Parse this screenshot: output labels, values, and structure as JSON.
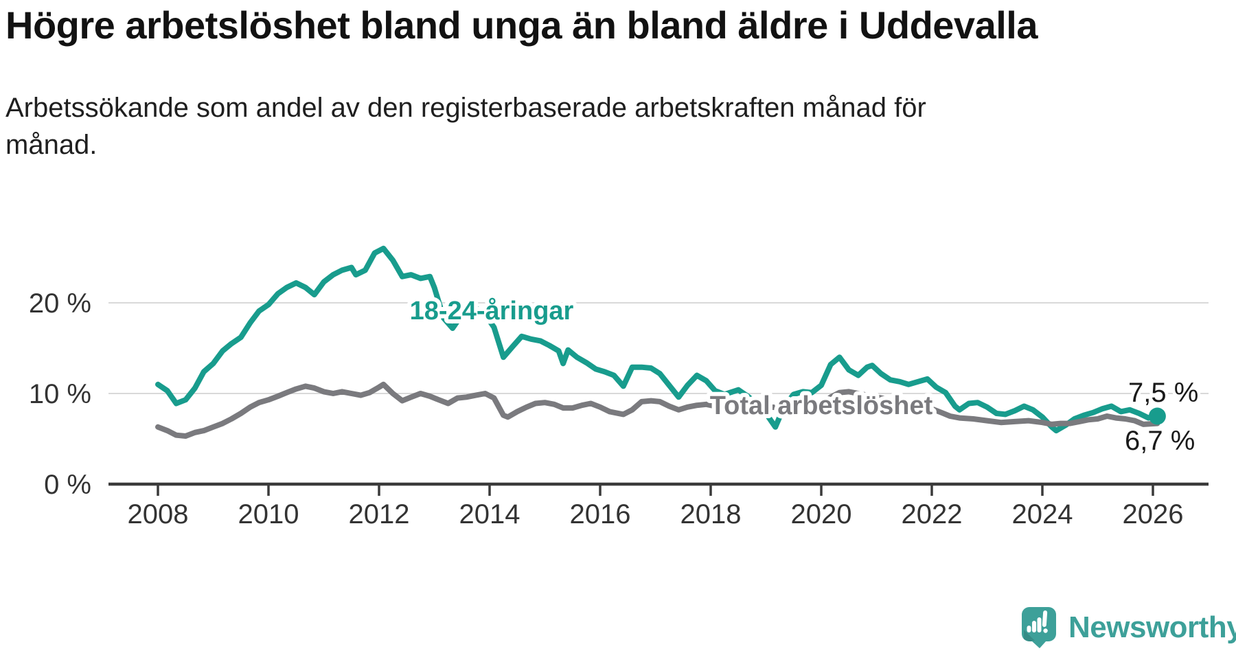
{
  "header": {
    "title": "Högre arbetslöshet bland unga än bland äldre i Uddevalla",
    "subtitle": "Arbetssökande som andel av den registerbaserade arbetskraften månad för månad."
  },
  "chart_data": {
    "type": "line",
    "title": "Högre arbetslöshet bland unga än bland äldre i Uddevalla",
    "subtitle": "Arbetssökande som andel av den registerbaserade arbetskraften månad för månad.",
    "unit": "%",
    "grid": "horizontal",
    "legend_position": "inline-labels",
    "x_axis": {
      "range": [
        2007.1,
        2027.0
      ],
      "ticks": [
        {
          "year": 2008,
          "label": "2008"
        },
        {
          "year": 2010,
          "label": "2010"
        },
        {
          "year": 2012,
          "label": "2012"
        },
        {
          "year": 2014,
          "label": "2014"
        },
        {
          "year": 2016,
          "label": "2016"
        },
        {
          "year": 2018,
          "label": "2018"
        },
        {
          "year": 2020,
          "label": "2020"
        },
        {
          "year": 2022,
          "label": "2022"
        },
        {
          "year": 2024,
          "label": "2024"
        },
        {
          "year": 2026,
          "label": "2026"
        }
      ]
    },
    "y_axis": {
      "range": [
        0,
        27
      ],
      "ticks": [
        {
          "value": 0,
          "label": "0 %"
        },
        {
          "value": 10,
          "label": "10 %"
        },
        {
          "value": 20,
          "label": "20 %"
        }
      ]
    },
    "style": {
      "grid_color": "#d9d9d9",
      "axis_color": "#3a3a3a",
      "axis_text_color": "#333333"
    },
    "series": [
      {
        "id": "young",
        "label": "18-24-åringar",
        "color": "#189c8d",
        "latest_value_label": "7,5 %",
        "points": [
          [
            2008.0,
            11.0
          ],
          [
            2008.17,
            10.3
          ],
          [
            2008.33,
            8.9
          ],
          [
            2008.5,
            9.3
          ],
          [
            2008.67,
            10.6
          ],
          [
            2008.83,
            12.4
          ],
          [
            2009.0,
            13.3
          ],
          [
            2009.17,
            14.7
          ],
          [
            2009.33,
            15.5
          ],
          [
            2009.5,
            16.2
          ],
          [
            2009.67,
            17.8
          ],
          [
            2009.83,
            19.1
          ],
          [
            2010.0,
            19.8
          ],
          [
            2010.17,
            21.0
          ],
          [
            2010.33,
            21.7
          ],
          [
            2010.5,
            22.2
          ],
          [
            2010.67,
            21.7
          ],
          [
            2010.83,
            20.9
          ],
          [
            2011.0,
            22.3
          ],
          [
            2011.17,
            23.1
          ],
          [
            2011.33,
            23.6
          ],
          [
            2011.5,
            23.9
          ],
          [
            2011.58,
            23.1
          ],
          [
            2011.75,
            23.6
          ],
          [
            2011.92,
            25.5
          ],
          [
            2012.08,
            26.0
          ],
          [
            2012.25,
            24.7
          ],
          [
            2012.42,
            22.9
          ],
          [
            2012.58,
            23.1
          ],
          [
            2012.75,
            22.7
          ],
          [
            2012.92,
            22.9
          ],
          [
            2013.0,
            21.7
          ],
          [
            2013.17,
            18.3
          ],
          [
            2013.33,
            17.2
          ],
          [
            2013.5,
            18.7
          ],
          [
            2013.67,
            19.5
          ],
          [
            2013.83,
            19.2
          ],
          [
            2014.0,
            18.0
          ],
          [
            2014.08,
            17.3
          ],
          [
            2014.25,
            14.0
          ],
          [
            2014.42,
            15.2
          ],
          [
            2014.58,
            16.3
          ],
          [
            2014.75,
            16.0
          ],
          [
            2014.92,
            15.8
          ],
          [
            2015.08,
            15.3
          ],
          [
            2015.25,
            14.7
          ],
          [
            2015.33,
            13.3
          ],
          [
            2015.42,
            14.8
          ],
          [
            2015.58,
            14.0
          ],
          [
            2015.75,
            13.4
          ],
          [
            2015.92,
            12.7
          ],
          [
            2016.08,
            12.4
          ],
          [
            2016.25,
            12.0
          ],
          [
            2016.42,
            10.8
          ],
          [
            2016.58,
            12.9
          ],
          [
            2016.75,
            12.9
          ],
          [
            2016.92,
            12.8
          ],
          [
            2017.08,
            12.2
          ],
          [
            2017.25,
            10.9
          ],
          [
            2017.42,
            9.6
          ],
          [
            2017.58,
            10.9
          ],
          [
            2017.75,
            12.0
          ],
          [
            2017.92,
            11.4
          ],
          [
            2018.08,
            10.3
          ],
          [
            2018.25,
            9.9
          ],
          [
            2018.5,
            10.4
          ],
          [
            2018.67,
            9.7
          ],
          [
            2018.83,
            8.9
          ],
          [
            2019.0,
            7.8
          ],
          [
            2019.17,
            6.3
          ],
          [
            2019.33,
            8.6
          ],
          [
            2019.5,
            9.9
          ],
          [
            2019.67,
            10.2
          ],
          [
            2019.83,
            10.1
          ],
          [
            2020.0,
            10.9
          ],
          [
            2020.17,
            13.2
          ],
          [
            2020.33,
            14.0
          ],
          [
            2020.5,
            12.6
          ],
          [
            2020.67,
            12.0
          ],
          [
            2020.83,
            12.9
          ],
          [
            2020.92,
            13.1
          ],
          [
            2021.08,
            12.2
          ],
          [
            2021.25,
            11.5
          ],
          [
            2021.42,
            11.3
          ],
          [
            2021.58,
            11.0
          ],
          [
            2021.75,
            11.3
          ],
          [
            2021.92,
            11.6
          ],
          [
            2022.08,
            10.7
          ],
          [
            2022.25,
            10.1
          ],
          [
            2022.42,
            8.6
          ],
          [
            2022.5,
            8.2
          ],
          [
            2022.67,
            8.9
          ],
          [
            2022.83,
            9.0
          ],
          [
            2023.0,
            8.5
          ],
          [
            2023.17,
            7.8
          ],
          [
            2023.33,
            7.7
          ],
          [
            2023.5,
            8.1
          ],
          [
            2023.67,
            8.6
          ],
          [
            2023.83,
            8.2
          ],
          [
            2024.0,
            7.4
          ],
          [
            2024.17,
            6.3
          ],
          [
            2024.25,
            5.9
          ],
          [
            2024.42,
            6.5
          ],
          [
            2024.58,
            7.2
          ],
          [
            2024.75,
            7.6
          ],
          [
            2024.92,
            7.9
          ],
          [
            2025.08,
            8.3
          ],
          [
            2025.25,
            8.6
          ],
          [
            2025.42,
            8.0
          ],
          [
            2025.58,
            8.2
          ],
          [
            2025.75,
            7.8
          ],
          [
            2025.92,
            7.3
          ],
          [
            2026.08,
            7.5
          ]
        ]
      },
      {
        "id": "total",
        "label": "Total arbetslöshet",
        "color": "#7a7a7e",
        "latest_value_label": "6,7 %",
        "points": [
          [
            2008.0,
            6.3
          ],
          [
            2008.17,
            5.9
          ],
          [
            2008.33,
            5.4
          ],
          [
            2008.5,
            5.3
          ],
          [
            2008.67,
            5.7
          ],
          [
            2008.83,
            5.9
          ],
          [
            2009.0,
            6.3
          ],
          [
            2009.17,
            6.7
          ],
          [
            2009.33,
            7.2
          ],
          [
            2009.5,
            7.8
          ],
          [
            2009.67,
            8.5
          ],
          [
            2009.83,
            9.0
          ],
          [
            2010.0,
            9.3
          ],
          [
            2010.17,
            9.7
          ],
          [
            2010.33,
            10.1
          ],
          [
            2010.5,
            10.5
          ],
          [
            2010.67,
            10.8
          ],
          [
            2010.83,
            10.6
          ],
          [
            2011.0,
            10.2
          ],
          [
            2011.17,
            10.0
          ],
          [
            2011.33,
            10.2
          ],
          [
            2011.5,
            10.0
          ],
          [
            2011.67,
            9.8
          ],
          [
            2011.83,
            10.1
          ],
          [
            2012.0,
            10.7
          ],
          [
            2012.08,
            11.0
          ],
          [
            2012.25,
            10.0
          ],
          [
            2012.42,
            9.2
          ],
          [
            2012.58,
            9.6
          ],
          [
            2012.75,
            10.0
          ],
          [
            2012.92,
            9.7
          ],
          [
            2013.08,
            9.3
          ],
          [
            2013.25,
            8.9
          ],
          [
            2013.42,
            9.5
          ],
          [
            2013.58,
            9.6
          ],
          [
            2013.75,
            9.8
          ],
          [
            2013.92,
            10.0
          ],
          [
            2014.08,
            9.5
          ],
          [
            2014.25,
            7.6
          ],
          [
            2014.33,
            7.4
          ],
          [
            2014.5,
            8.0
          ],
          [
            2014.67,
            8.5
          ],
          [
            2014.83,
            8.9
          ],
          [
            2015.0,
            9.0
          ],
          [
            2015.17,
            8.8
          ],
          [
            2015.33,
            8.4
          ],
          [
            2015.5,
            8.4
          ],
          [
            2015.67,
            8.7
          ],
          [
            2015.83,
            8.9
          ],
          [
            2016.0,
            8.5
          ],
          [
            2016.17,
            8.0
          ],
          [
            2016.42,
            7.7
          ],
          [
            2016.58,
            8.2
          ],
          [
            2016.75,
            9.1
          ],
          [
            2016.92,
            9.2
          ],
          [
            2017.08,
            9.1
          ],
          [
            2017.25,
            8.6
          ],
          [
            2017.42,
            8.2
          ],
          [
            2017.58,
            8.5
          ],
          [
            2017.75,
            8.7
          ],
          [
            2017.92,
            8.8
          ],
          [
            2018.08,
            8.6
          ],
          [
            2018.33,
            8.4
          ],
          [
            2018.58,
            8.3
          ],
          [
            2018.83,
            8.4
          ],
          [
            2019.08,
            8.5
          ],
          [
            2019.33,
            8.4
          ],
          [
            2019.58,
            8.6
          ],
          [
            2019.83,
            8.7
          ],
          [
            2020.0,
            8.8
          ],
          [
            2020.17,
            9.6
          ],
          [
            2020.33,
            10.1
          ],
          [
            2020.5,
            10.2
          ],
          [
            2020.67,
            10.0
          ],
          [
            2020.83,
            9.8
          ],
          [
            2021.0,
            9.6
          ],
          [
            2021.25,
            9.3
          ],
          [
            2021.5,
            9.0
          ],
          [
            2021.75,
            8.7
          ],
          [
            2022.0,
            8.3
          ],
          [
            2022.17,
            7.9
          ],
          [
            2022.33,
            7.5
          ],
          [
            2022.5,
            7.3
          ],
          [
            2022.75,
            7.2
          ],
          [
            2023.0,
            7.0
          ],
          [
            2023.25,
            6.8
          ],
          [
            2023.5,
            6.9
          ],
          [
            2023.75,
            7.0
          ],
          [
            2024.0,
            6.8
          ],
          [
            2024.17,
            6.6
          ],
          [
            2024.33,
            6.7
          ],
          [
            2024.5,
            6.7
          ],
          [
            2024.67,
            6.9
          ],
          [
            2024.83,
            7.1
          ],
          [
            2025.0,
            7.2
          ],
          [
            2025.17,
            7.5
          ],
          [
            2025.33,
            7.3
          ],
          [
            2025.5,
            7.2
          ],
          [
            2025.67,
            7.0
          ],
          [
            2025.83,
            6.6
          ],
          [
            2026.08,
            6.7
          ]
        ]
      }
    ],
    "end_labels": {
      "young_label": "7,5 %",
      "total_label": "6,7 %"
    }
  },
  "footer": {
    "brand": "Newsworthy",
    "brand_color": "#3da099",
    "logo_icon": "bar-chart-speech-bubble-icon"
  }
}
